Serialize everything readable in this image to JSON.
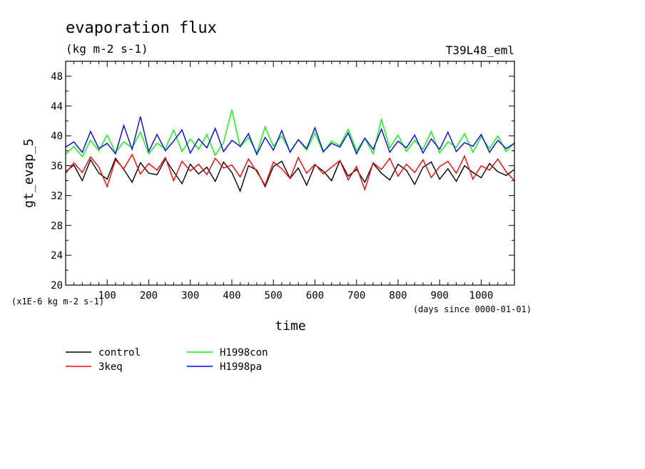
{
  "chart_data": {
    "type": "line",
    "title": "evaporation flux",
    "subtitle": "(kg m-2 s-1)",
    "experiment": "T39L48_eml",
    "xlabel": "time",
    "xunits": "(days since 0000-01-01)",
    "ylabel": "gt_evap_5",
    "yscale_note": "(x1E-6 kg m-2 s-1)",
    "xlim": [
      0,
      1080
    ],
    "ylim": [
      20,
      50
    ],
    "xticks": [
      100,
      200,
      300,
      400,
      500,
      600,
      700,
      800,
      900,
      1000
    ],
    "yticks": [
      20,
      24,
      28,
      32,
      36,
      40,
      44,
      48
    ],
    "grid": false,
    "legend_position": "bottom-left",
    "series": [
      {
        "name": "control",
        "color": "#000000",
        "x": [
          0,
          20,
          40,
          60,
          80,
          100,
          120,
          140,
          160,
          180,
          200,
          220,
          240,
          260,
          280,
          300,
          320,
          340,
          360,
          380,
          400,
          420,
          440,
          460,
          480,
          500,
          520,
          540,
          560,
          580,
          600,
          620,
          640,
          660,
          680,
          700,
          720,
          740,
          760,
          780,
          800,
          820,
          840,
          860,
          880,
          900,
          920,
          940,
          960,
          980,
          1000,
          1020,
          1040,
          1060,
          1080
        ],
        "values": [
          35.2,
          36.1,
          34.0,
          36.8,
          35.0,
          34.2,
          37.0,
          35.5,
          33.8,
          36.4,
          35.0,
          34.8,
          36.9,
          35.2,
          33.6,
          36.2,
          34.9,
          35.8,
          33.9,
          36.5,
          35.1,
          32.6,
          36.0,
          35.4,
          33.2,
          35.9,
          36.6,
          34.3,
          35.7,
          33.4,
          36.1,
          35.3,
          34.0,
          36.7,
          34.6,
          35.5,
          33.8,
          36.3,
          35.0,
          34.1,
          36.2,
          35.4,
          33.5,
          35.8,
          36.5,
          34.2,
          35.6,
          33.9,
          36.0,
          35.1,
          34.4,
          36.3,
          35.2,
          34.7,
          35.5
        ]
      },
      {
        "name": "3keq",
        "color": "#ff0000",
        "x": [
          0,
          20,
          40,
          60,
          80,
          100,
          120,
          140,
          160,
          180,
          200,
          220,
          240,
          260,
          280,
          300,
          320,
          340,
          360,
          380,
          400,
          420,
          440,
          460,
          480,
          500,
          520,
          540,
          560,
          580,
          600,
          620,
          640,
          660,
          680,
          700,
          720,
          740,
          760,
          780,
          800,
          820,
          840,
          860,
          880,
          900,
          920,
          940,
          960,
          980,
          1000,
          1020,
          1040,
          1060,
          1080
        ],
        "values": [
          35.0,
          36.4,
          35.1,
          37.2,
          35.8,
          33.2,
          36.8,
          35.6,
          37.5,
          34.9,
          36.3,
          35.4,
          37.1,
          34.0,
          36.6,
          35.3,
          36.2,
          34.8,
          37.0,
          35.7,
          36.1,
          34.5,
          36.9,
          35.2,
          33.4,
          36.5,
          35.6,
          34.3,
          37.1,
          35.0,
          36.2,
          34.9,
          35.8,
          36.7,
          34.1,
          35.9,
          32.8,
          36.4,
          35.5,
          37.0,
          34.6,
          36.2,
          35.1,
          36.8,
          34.4,
          35.9,
          36.6,
          35.0,
          37.3,
          34.2,
          36.0,
          35.4,
          36.9,
          35.2,
          34.0
        ]
      },
      {
        "name": "H1998con",
        "color": "#00ff00",
        "x": [
          0,
          20,
          40,
          60,
          80,
          100,
          120,
          140,
          160,
          180,
          200,
          220,
          240,
          260,
          280,
          300,
          320,
          340,
          360,
          380,
          400,
          420,
          440,
          460,
          480,
          500,
          520,
          540,
          560,
          580,
          600,
          620,
          640,
          660,
          680,
          700,
          720,
          740,
          760,
          780,
          800,
          820,
          840,
          860,
          880,
          900,
          920,
          940,
          960,
          980,
          1000,
          1020,
          1040,
          1060,
          1080
        ],
        "values": [
          37.5,
          38.6,
          37.2,
          39.4,
          38.0,
          40.1,
          37.8,
          39.2,
          38.4,
          40.5,
          37.6,
          39.0,
          38.3,
          40.8,
          37.9,
          39.6,
          38.2,
          40.2,
          37.4,
          39.1,
          43.5,
          38.5,
          39.8,
          37.7,
          41.2,
          38.6,
          40.0,
          37.9,
          39.5,
          38.1,
          40.4,
          37.8,
          39.3,
          38.7,
          40.9,
          38.0,
          39.7,
          37.6,
          42.2,
          38.4,
          40.1,
          37.9,
          39.4,
          38.2,
          40.6,
          37.7,
          39.2,
          38.5,
          40.3,
          37.8,
          39.9,
          38.3,
          40.0,
          37.9,
          39.1
        ]
      },
      {
        "name": "H1998pa",
        "color": "#0000ff",
        "x": [
          0,
          20,
          40,
          60,
          80,
          100,
          120,
          140,
          160,
          180,
          200,
          220,
          240,
          260,
          280,
          300,
          320,
          340,
          360,
          380,
          400,
          420,
          440,
          460,
          480,
          500,
          520,
          540,
          560,
          580,
          600,
          620,
          640,
          660,
          680,
          700,
          720,
          740,
          760,
          780,
          800,
          820,
          840,
          860,
          880,
          900,
          920,
          940,
          960,
          980,
          1000,
          1020,
          1040,
          1060,
          1080
        ],
        "values": [
          38.5,
          39.2,
          37.8,
          40.6,
          38.3,
          39.0,
          37.6,
          41.4,
          38.2,
          42.6,
          37.9,
          40.2,
          38.0,
          39.3,
          40.8,
          37.7,
          39.6,
          38.4,
          41.0,
          37.9,
          39.4,
          38.6,
          40.3,
          37.5,
          39.8,
          38.1,
          40.7,
          37.8,
          39.5,
          38.3,
          41.1,
          37.9,
          39.0,
          38.5,
          40.4,
          37.6,
          39.7,
          38.2,
          40.9,
          37.8,
          39.3,
          38.4,
          40.1,
          37.7,
          39.6,
          38.2,
          40.5,
          37.9,
          39.1,
          38.6,
          40.2,
          37.8,
          39.4,
          38.3,
          39.0
        ]
      }
    ]
  }
}
